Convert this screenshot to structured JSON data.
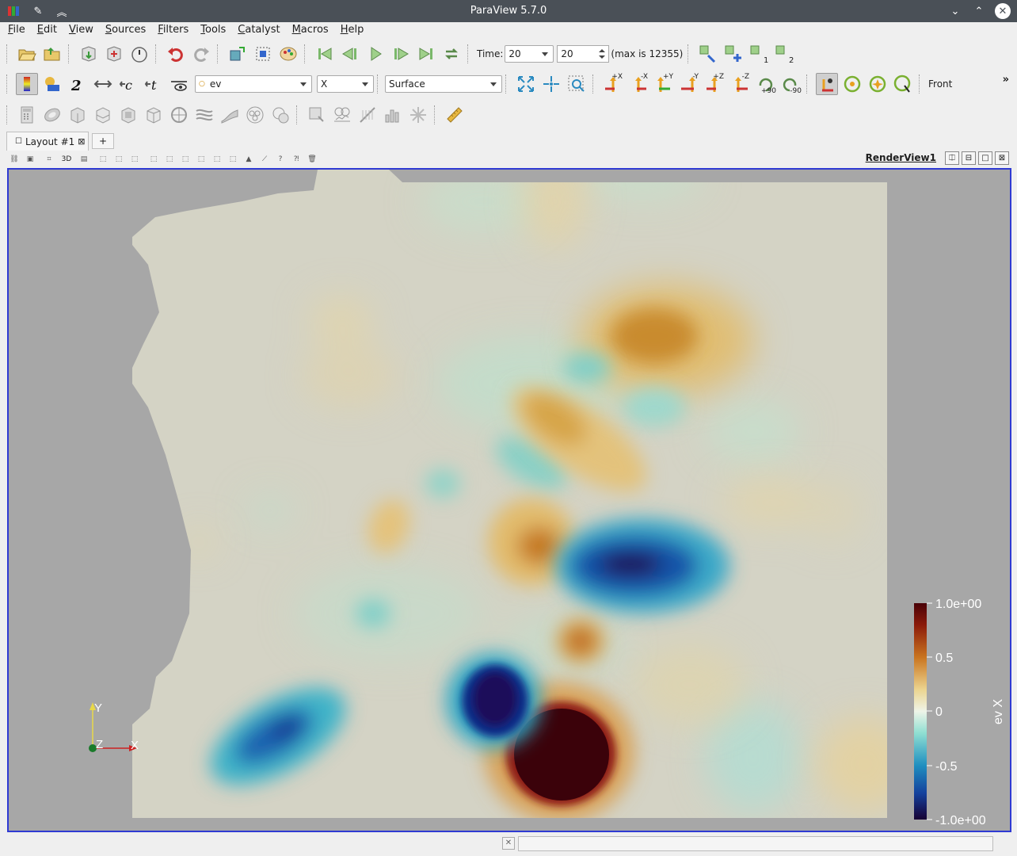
{
  "window": {
    "title": "ParaView 5.7.0",
    "icons": [
      "paraview-logo-icon",
      "pin-icon",
      "keep-above-icon",
      "minimize-icon",
      "maximize-icon",
      "close-icon"
    ]
  },
  "menu": [
    "File",
    "Edit",
    "View",
    "Sources",
    "Filters",
    "Tools",
    "Catalyst",
    "Macros",
    "Help"
  ],
  "time_toolbar": {
    "time_label": "Time:",
    "time_value": "20",
    "step_value": "20",
    "max_text": "(max is 12355)",
    "cam_link_1": "1",
    "cam_link_2": "2"
  },
  "active_variables": {
    "array_name": "ev",
    "component": "X",
    "representation": "Surface",
    "camera_labels": [
      "+X",
      "-X",
      "+Y",
      "-Y",
      "+Z",
      "-Z"
    ],
    "rotate_pos": "+90",
    "rotate_neg": "-90",
    "view_direction": "Front",
    "more": "»"
  },
  "layout_tabs": {
    "active_tab": "Layout #1",
    "add_tab": "+"
  },
  "view_toolbar": {
    "mode_3d": "3D",
    "view_name": "RenderView1",
    "split_h": "⎅",
    "split_v": "⊟",
    "maximize": "□",
    "close": "⊠"
  },
  "color_legend": {
    "title": "ev X",
    "labels": [
      "1.0e+00",
      "0.5",
      "0",
      "-0.5",
      "-1.0e+00"
    ],
    "colormap": [
      "#f3eba7",
      "#e3b84f",
      "#c26a1c",
      "#7d1408",
      "#2c0205",
      "#d5f1e4",
      "#4ec4c4",
      "#1a63b3",
      "#0b1a6f",
      "#160033"
    ]
  },
  "axes": {
    "x": "X",
    "y": "Y",
    "z": "Z"
  },
  "colors": {
    "title_bar": "#4a5057",
    "render_bg": "#a7a7a7",
    "field_base": "#d4d3c5",
    "active_frame": "#2f3ad3"
  }
}
